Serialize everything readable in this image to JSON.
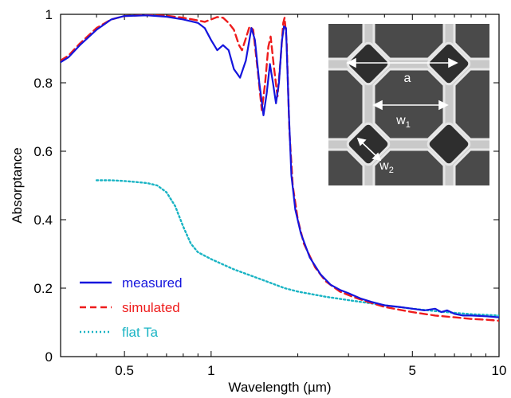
{
  "chart_data": {
    "type": "line",
    "xlabel": "Wavelength (µm)",
    "ylabel": "Absorptance",
    "x_scale": "log",
    "xlim": [
      0.3,
      10
    ],
    "ylim": [
      0,
      1
    ],
    "x_ticks": [
      0.5,
      1,
      5,
      10
    ],
    "x_tick_labels": [
      "0.5",
      "1",
      "5",
      "10"
    ],
    "y_ticks": [
      0,
      0.2,
      0.4,
      0.6,
      0.8,
      1
    ],
    "y_tick_labels": [
      "0",
      "0.2",
      "0.4",
      "0.6",
      "0.8",
      "1"
    ],
    "legend_position": "bottom-left",
    "series": [
      {
        "name": "measured",
        "color": "#1515dd",
        "style": "solid",
        "points": [
          [
            0.3,
            0.86
          ],
          [
            0.32,
            0.875
          ],
          [
            0.35,
            0.91
          ],
          [
            0.4,
            0.955
          ],
          [
            0.45,
            0.985
          ],
          [
            0.5,
            0.995
          ],
          [
            0.6,
            0.997
          ],
          [
            0.7,
            0.993
          ],
          [
            0.8,
            0.985
          ],
          [
            0.9,
            0.975
          ],
          [
            0.95,
            0.96
          ],
          [
            1.0,
            0.925
          ],
          [
            1.05,
            0.895
          ],
          [
            1.1,
            0.91
          ],
          [
            1.15,
            0.895
          ],
          [
            1.2,
            0.84
          ],
          [
            1.26,
            0.815
          ],
          [
            1.32,
            0.865
          ],
          [
            1.38,
            0.96
          ],
          [
            1.42,
            0.925
          ],
          [
            1.47,
            0.8
          ],
          [
            1.52,
            0.705
          ],
          [
            1.56,
            0.77
          ],
          [
            1.6,
            0.855
          ],
          [
            1.64,
            0.8
          ],
          [
            1.68,
            0.74
          ],
          [
            1.72,
            0.8
          ],
          [
            1.76,
            0.92
          ],
          [
            1.79,
            0.965
          ],
          [
            1.82,
            0.96
          ],
          [
            1.86,
            0.72
          ],
          [
            1.9,
            0.53
          ],
          [
            1.96,
            0.43
          ],
          [
            2.05,
            0.36
          ],
          [
            2.2,
            0.29
          ],
          [
            2.4,
            0.24
          ],
          [
            2.6,
            0.21
          ],
          [
            2.8,
            0.195
          ],
          [
            3.0,
            0.185
          ],
          [
            3.3,
            0.17
          ],
          [
            3.6,
            0.16
          ],
          [
            4.0,
            0.15
          ],
          [
            4.5,
            0.145
          ],
          [
            5.0,
            0.14
          ],
          [
            5.5,
            0.135
          ],
          [
            6.0,
            0.14
          ],
          [
            6.3,
            0.13
          ],
          [
            6.6,
            0.135
          ],
          [
            7.0,
            0.125
          ],
          [
            7.5,
            0.12
          ],
          [
            8.0,
            0.12
          ],
          [
            9.0,
            0.118
          ],
          [
            10.0,
            0.115
          ]
        ]
      },
      {
        "name": "simulated",
        "color": "#ee1c1c",
        "style": "dashed",
        "points": [
          [
            0.3,
            0.865
          ],
          [
            0.32,
            0.88
          ],
          [
            0.35,
            0.915
          ],
          [
            0.4,
            0.96
          ],
          [
            0.45,
            0.985
          ],
          [
            0.5,
            0.995
          ],
          [
            0.6,
            0.998
          ],
          [
            0.7,
            0.996
          ],
          [
            0.8,
            0.99
          ],
          [
            0.9,
            0.982
          ],
          [
            0.95,
            0.978
          ],
          [
            1.0,
            0.985
          ],
          [
            1.05,
            0.992
          ],
          [
            1.1,
            0.99
          ],
          [
            1.15,
            0.975
          ],
          [
            1.2,
            0.955
          ],
          [
            1.25,
            0.91
          ],
          [
            1.28,
            0.895
          ],
          [
            1.32,
            0.93
          ],
          [
            1.36,
            0.965
          ],
          [
            1.4,
            0.955
          ],
          [
            1.45,
            0.84
          ],
          [
            1.5,
            0.72
          ],
          [
            1.54,
            0.8
          ],
          [
            1.58,
            0.905
          ],
          [
            1.61,
            0.935
          ],
          [
            1.65,
            0.85
          ],
          [
            1.7,
            0.76
          ],
          [
            1.74,
            0.86
          ],
          [
            1.78,
            0.975
          ],
          [
            1.8,
            0.99
          ],
          [
            1.83,
            0.92
          ],
          [
            1.87,
            0.66
          ],
          [
            1.92,
            0.5
          ],
          [
            2.0,
            0.4
          ],
          [
            2.1,
            0.33
          ],
          [
            2.3,
            0.26
          ],
          [
            2.5,
            0.22
          ],
          [
            2.8,
            0.19
          ],
          [
            3.1,
            0.175
          ],
          [
            3.5,
            0.16
          ],
          [
            4.0,
            0.145
          ],
          [
            5.0,
            0.13
          ],
          [
            6.0,
            0.12
          ],
          [
            7.0,
            0.115
          ],
          [
            8.0,
            0.11
          ],
          [
            9.0,
            0.108
          ],
          [
            10.0,
            0.105
          ]
        ]
      },
      {
        "name": "flat Ta",
        "color": "#1ab4c4",
        "style": "dotted",
        "points": [
          [
            0.4,
            0.515
          ],
          [
            0.45,
            0.515
          ],
          [
            0.5,
            0.513
          ],
          [
            0.55,
            0.51
          ],
          [
            0.6,
            0.507
          ],
          [
            0.65,
            0.5
          ],
          [
            0.7,
            0.48
          ],
          [
            0.75,
            0.44
          ],
          [
            0.8,
            0.38
          ],
          [
            0.85,
            0.33
          ],
          [
            0.9,
            0.305
          ],
          [
            1.0,
            0.285
          ],
          [
            1.2,
            0.255
          ],
          [
            1.5,
            0.225
          ],
          [
            1.8,
            0.2
          ],
          [
            2.0,
            0.19
          ],
          [
            2.5,
            0.175
          ],
          [
            3.0,
            0.165
          ],
          [
            4.0,
            0.15
          ],
          [
            5.0,
            0.14
          ],
          [
            6.0,
            0.133
          ],
          [
            7.0,
            0.128
          ],
          [
            8.0,
            0.124
          ],
          [
            10.0,
            0.12
          ]
        ]
      }
    ],
    "inset": {
      "description_labels": [
        "a",
        "w1",
        "w2"
      ],
      "label_a": "a",
      "label_w1_base": "w",
      "label_w1_sub": "1",
      "label_w2_base": "w",
      "label_w2_sub": "2"
    }
  }
}
